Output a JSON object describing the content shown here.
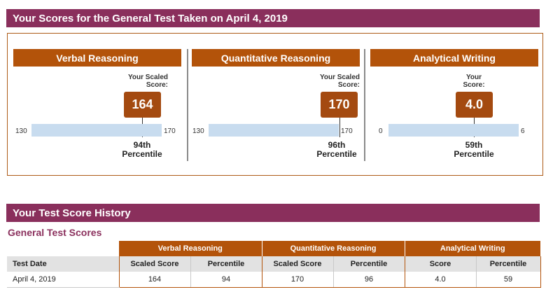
{
  "header": {
    "title": "Your Scores for the General Test Taken on April 4, 2019"
  },
  "sections": [
    {
      "title": "Verbal Reasoning",
      "scaled_label_line1": "Your Scaled",
      "scaled_label_line2": "Score:",
      "score": "164",
      "min": "130",
      "max": "170",
      "score_fraction": 0.85,
      "percentile_line1": "94th",
      "percentile_line2": "Percentile"
    },
    {
      "title": "Quantitative Reasoning",
      "scaled_label_line1": "Your Scaled",
      "scaled_label_line2": "Score:",
      "score": "170",
      "min": "130",
      "max": "170",
      "score_fraction": 1.0,
      "percentile_line1": "96th",
      "percentile_line2": "Percentile"
    },
    {
      "title": "Analytical Writing",
      "scaled_label_line1": "Your",
      "scaled_label_line2": "Score:",
      "score": "4.0",
      "min": "0",
      "max": "6",
      "score_fraction": 0.667,
      "percentile_line1": "59th",
      "percentile_line2": "Percentile"
    }
  ],
  "history": {
    "title": "Your Test Score History",
    "subtitle": "General Test Scores",
    "groups": [
      "Verbal Reasoning",
      "Quantitative Reasoning",
      "Analytical Writing"
    ],
    "columns": [
      "Test Date",
      "Scaled Score",
      "Percentile",
      "Scaled Score",
      "Percentile",
      "Score",
      "Percentile"
    ],
    "rows": [
      [
        "April 4, 2019",
        "164",
        "94",
        "170",
        "96",
        "4.0",
        "59"
      ]
    ]
  },
  "colors": {
    "banner": "#8a2f5c",
    "section_header": "#b3530a",
    "badge": "#a44a10",
    "track": "#c8dcef"
  }
}
